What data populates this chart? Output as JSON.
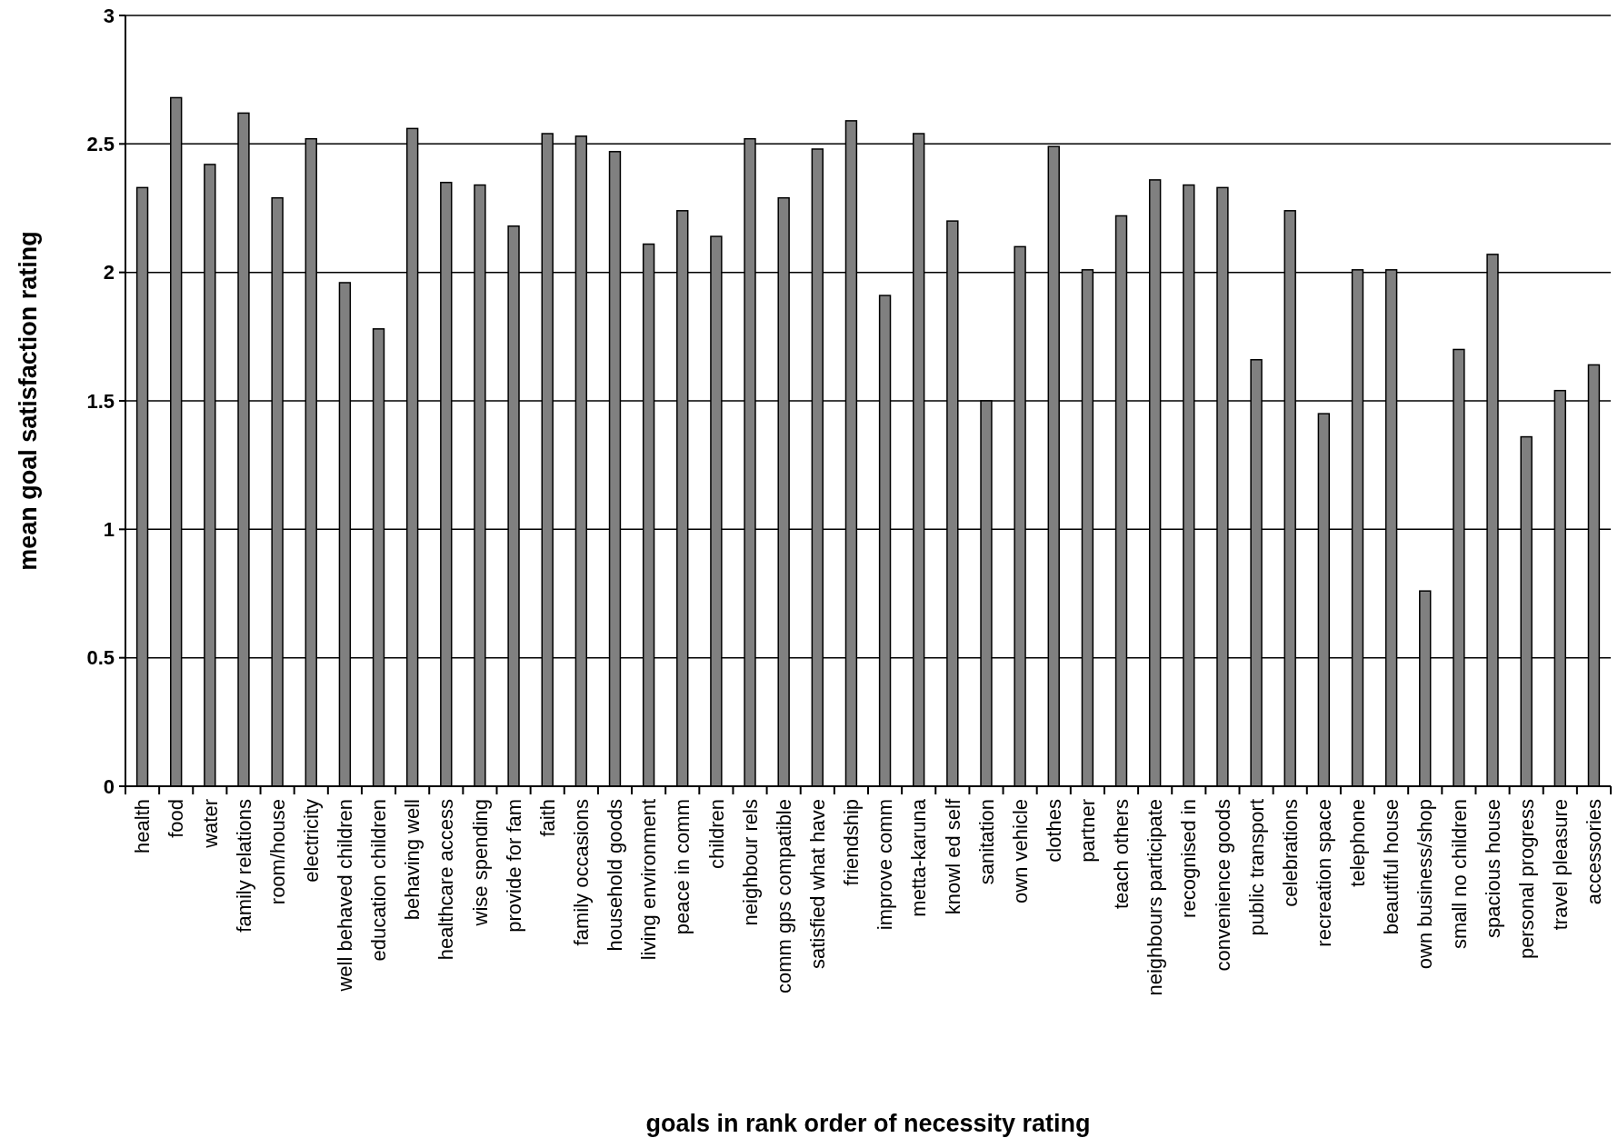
{
  "chart_data": {
    "type": "bar",
    "xlabel": "goals in rank order of necessity rating",
    "ylabel": "mean goal satisfaction rating",
    "categories": [
      "health",
      "food",
      "water",
      "family relations",
      "room/house",
      "electricity",
      "well behaved children",
      "education children",
      "behaving well",
      "healthcare access",
      "wise spending",
      "provide for fam",
      "faith",
      "family occasions",
      "household goods",
      "living environment",
      "peace in comm",
      "children",
      "neighbour rels",
      "comm gps compatible",
      "satisfied what have",
      "friendship",
      "improve comm",
      "metta-karuna",
      "knowl ed self",
      "sanitation",
      "own vehicle",
      "clothes",
      "partner",
      "teach others",
      "neighbours participate",
      "recognised in",
      "convenience goods",
      "public transport",
      "celebrations",
      "recreation space",
      "telephone",
      "beautiful house",
      "own business/shop",
      "small no children",
      "spacious house",
      "personal progress",
      "travel pleasure",
      "accessories"
    ],
    "values": [
      2.33,
      2.68,
      2.42,
      2.62,
      2.29,
      2.52,
      1.96,
      1.78,
      2.56,
      2.35,
      2.34,
      2.18,
      2.54,
      2.53,
      2.47,
      2.11,
      2.24,
      2.14,
      2.52,
      2.29,
      2.48,
      2.59,
      1.91,
      2.54,
      2.2,
      1.5,
      2.1,
      2.49,
      2.01,
      2.22,
      2.36,
      2.34,
      2.33,
      1.66,
      2.24,
      1.45,
      2.01,
      2.01,
      0.76,
      1.7,
      2.07,
      1.36,
      1.54,
      1.64
    ],
    "color": "#808080",
    "ylim": [
      0,
      3
    ],
    "yticks": [
      0,
      0.5,
      1,
      1.5,
      2,
      2.5,
      3
    ],
    "grid": "y"
  }
}
